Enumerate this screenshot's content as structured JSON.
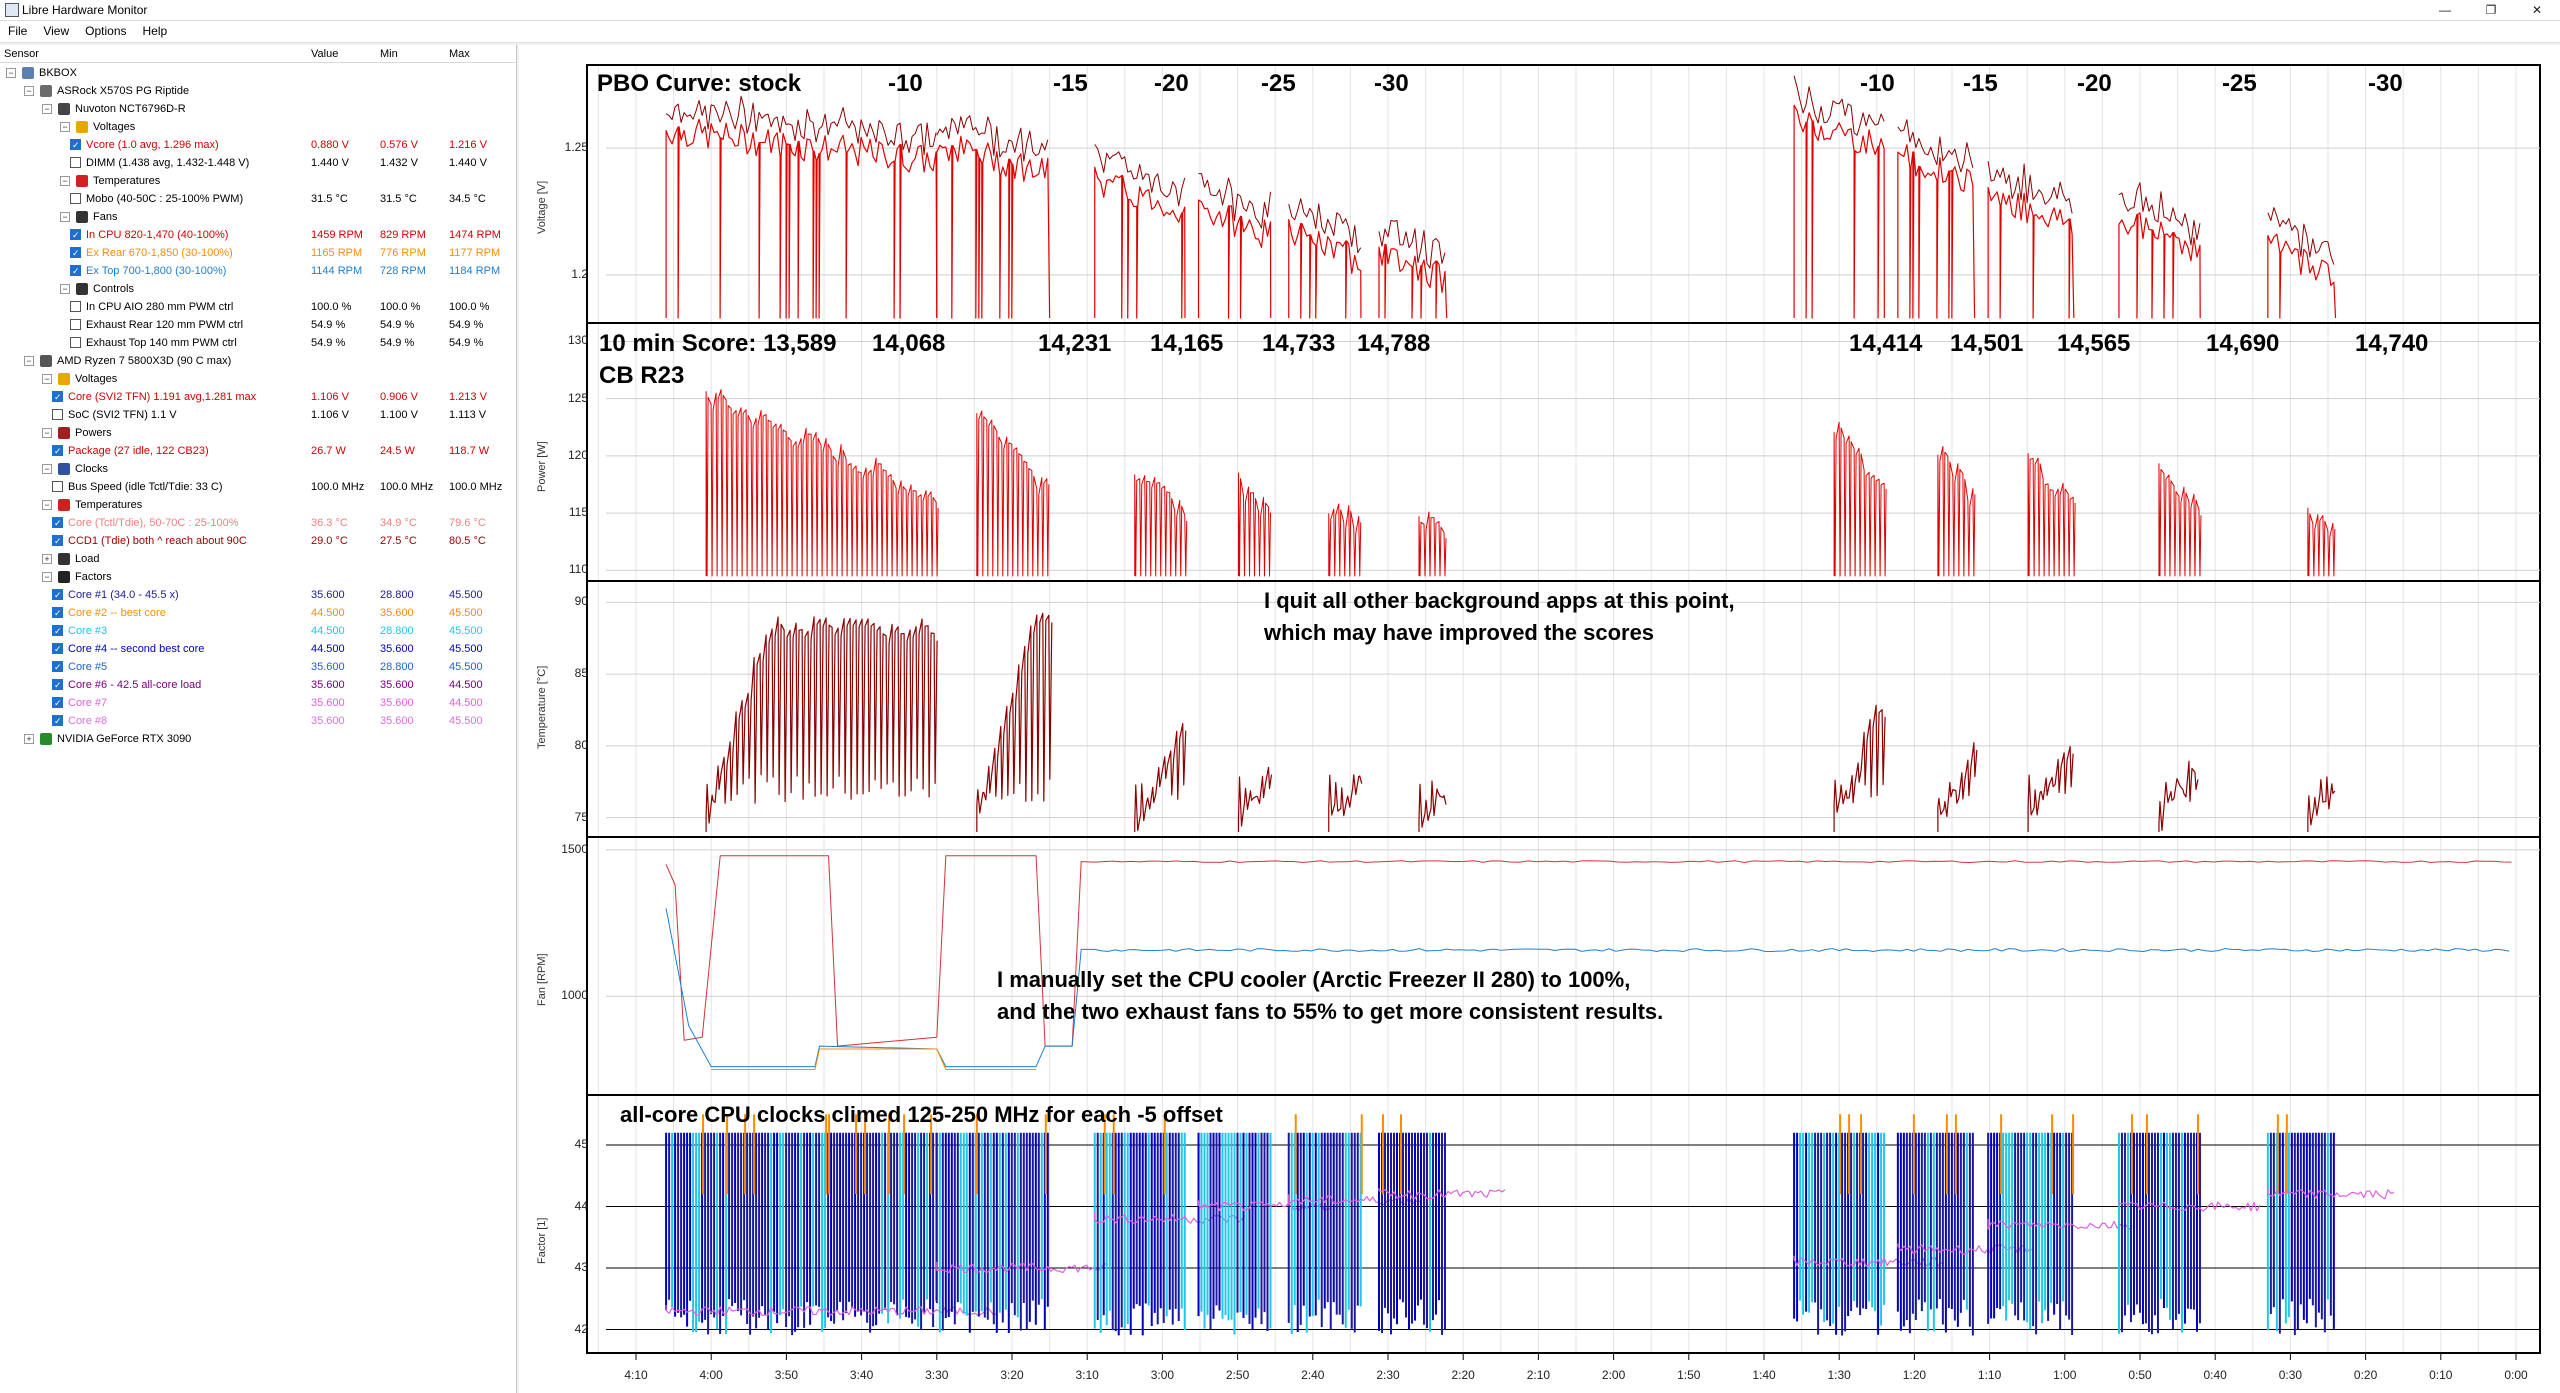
{
  "window": {
    "title": "Libre Hardware Monitor",
    "min": "—",
    "max": "❐",
    "close": "✕"
  },
  "menu": [
    "File",
    "View",
    "Options",
    "Help"
  ],
  "tree_header": {
    "sensor": "Sensor",
    "value": "Value",
    "min": "Min",
    "max": "Max"
  },
  "tree": [
    {
      "label": "BKBOX",
      "indent": 0,
      "exp": "−",
      "icon": "computer-icon",
      "iconColor": "#5a7fb0"
    },
    {
      "label": "ASRock X570S PG Riptide",
      "indent": 1,
      "exp": "−",
      "icon": "motherboard-icon",
      "iconColor": "#6b6b6b"
    },
    {
      "label": "Nuvoton NCT6796D-R",
      "indent": 2,
      "exp": "−",
      "icon": "chip-icon",
      "iconColor": "#444"
    },
    {
      "label": "Voltages",
      "indent": 3,
      "exp": "−",
      "icon": "lightning-icon",
      "iconColor": "#e6a800"
    },
    {
      "label": "Vcore (1.0 avg, 1.296 max)",
      "indent": 4,
      "chk": true,
      "value": "0.880 V",
      "min": "0.576 V",
      "max": "1.216 V",
      "color": "#d40000"
    },
    {
      "label": "DIMM (1.438 avg, 1.432-1.448 V)",
      "indent": 4,
      "chk": false,
      "value": "1.440 V",
      "min": "1.432 V",
      "max": "1.440 V",
      "color": "#000"
    },
    {
      "label": "Temperatures",
      "indent": 3,
      "exp": "−",
      "icon": "thermometer-icon",
      "iconColor": "#d02020"
    },
    {
      "label": "Mobo (40-50C : 25-100% PWM)",
      "indent": 4,
      "chk": false,
      "value": "31.5 °C",
      "min": "31.5 °C",
      "max": "34.5 °C",
      "color": "#000"
    },
    {
      "label": "Fans",
      "indent": 3,
      "exp": "−",
      "icon": "fan-icon",
      "iconColor": "#333"
    },
    {
      "label": "In CPU 820-1,470 (40-100%)",
      "indent": 4,
      "chk": true,
      "value": "1459 RPM",
      "min": "829 RPM",
      "max": "1474 RPM",
      "color": "#d40000"
    },
    {
      "label": "Ex Rear 670-1,850 (30-100%)",
      "indent": 4,
      "chk": true,
      "value": "1165 RPM",
      "min": "776 RPM",
      "max": "1177 RPM",
      "color": "#ff8c00"
    },
    {
      "label": "Ex Top 700-1,800 (30-100%)",
      "indent": 4,
      "chk": true,
      "value": "1144 RPM",
      "min": "728 RPM",
      "max": "1184 RPM",
      "color": "#1e7fd0"
    },
    {
      "label": "Controls",
      "indent": 3,
      "exp": "−",
      "icon": "gauge-icon",
      "iconColor": "#333"
    },
    {
      "label": "In CPU AIO 280 mm PWM ctrl",
      "indent": 4,
      "chk": false,
      "value": "100.0 %",
      "min": "100.0 %",
      "max": "100.0 %",
      "color": "#000"
    },
    {
      "label": "Exhaust Rear 120 mm PWM ctrl",
      "indent": 4,
      "chk": false,
      "value": "54.9 %",
      "min": "54.9 %",
      "max": "54.9 %",
      "color": "#000"
    },
    {
      "label": "Exhaust Top 140 mm PWM ctrl",
      "indent": 4,
      "chk": false,
      "value": "54.9 %",
      "min": "54.9 %",
      "max": "54.9 %",
      "color": "#000"
    },
    {
      "label": "AMD Ryzen 7 5800X3D (90 C max)",
      "indent": 1,
      "exp": "−",
      "icon": "cpu-icon",
      "iconColor": "#555"
    },
    {
      "label": "Voltages",
      "indent": 2,
      "exp": "−",
      "icon": "lightning-icon",
      "iconColor": "#e6a800"
    },
    {
      "label": "Core (SVI2 TFN) 1.191 avg,1.281 max",
      "indent": 3,
      "chk": true,
      "value": "1.106 V",
      "min": "0.906 V",
      "max": "1.213 V",
      "color": "#d40000"
    },
    {
      "label": "SoC (SVI2 TFN) 1.1 V",
      "indent": 3,
      "chk": false,
      "value": "1.106 V",
      "min": "1.100 V",
      "max": "1.113 V",
      "color": "#000"
    },
    {
      "label": "Powers",
      "indent": 2,
      "exp": "−",
      "icon": "power-icon",
      "iconColor": "#a02020"
    },
    {
      "label": "Package (27 idle, 122 CB23)",
      "indent": 3,
      "chk": true,
      "value": "26.7 W",
      "min": "24.5 W",
      "max": "118.7 W",
      "color": "#d40000"
    },
    {
      "label": "Clocks",
      "indent": 2,
      "exp": "−",
      "icon": "clock-icon",
      "iconColor": "#3050a0"
    },
    {
      "label": "Bus Speed (idle Tctl/Tdie: 33 C)",
      "indent": 3,
      "chk": false,
      "value": "100.0 MHz",
      "min": "100.0 MHz",
      "max": "100.0 MHz",
      "color": "#000"
    },
    {
      "label": "Temperatures",
      "indent": 2,
      "exp": "−",
      "icon": "thermometer-icon",
      "iconColor": "#d02020"
    },
    {
      "label": "Core (Tctl/Tdie), 50-70C : 25-100%",
      "indent": 3,
      "chk": true,
      "value": "36.3 °C",
      "min": "34.9 °C",
      "max": "79.6 °C",
      "color": "#f08080"
    },
    {
      "label": "CCD1 (Tdie) both ^ reach about 90C",
      "indent": 3,
      "chk": true,
      "value": "29.0 °C",
      "min": "27.5 °C",
      "max": "80.5 °C",
      "color": "#a00000"
    },
    {
      "label": "Load",
      "indent": 2,
      "exp": "+",
      "icon": "load-icon",
      "iconColor": "#333"
    },
    {
      "label": "Factors",
      "indent": 2,
      "exp": "−",
      "icon": "alpha-icon",
      "iconColor": "#222"
    },
    {
      "label": "Core #1 (34.0 - 45.5 x)",
      "indent": 3,
      "chk": true,
      "value": "35.600",
      "min": "28.800",
      "max": "45.500",
      "color": "#1a1aa0"
    },
    {
      "label": "Core #2 -- best core",
      "indent": 3,
      "chk": true,
      "value": "44.500",
      "min": "35.600",
      "max": "45.500",
      "color": "#ff8c00"
    },
    {
      "label": "Core #3",
      "indent": 3,
      "chk": true,
      "value": "44.500",
      "min": "28.800",
      "max": "45.500",
      "color": "#20c8e8"
    },
    {
      "label": "Core #4 -- second best core",
      "indent": 3,
      "chk": true,
      "value": "44.500",
      "min": "35.600",
      "max": "45.500",
      "color": "#0000c0"
    },
    {
      "label": "Core #5",
      "indent": 3,
      "chk": true,
      "value": "35.600",
      "min": "28.800",
      "max": "45.500",
      "color": "#2060d0"
    },
    {
      "label": "Core #6 - 42.5 all-core load",
      "indent": 3,
      "chk": true,
      "value": "35.600",
      "min": "35.600",
      "max": "44.500",
      "color": "#7a0080"
    },
    {
      "label": "Core #7",
      "indent": 3,
      "chk": true,
      "value": "35.600",
      "min": "35.600",
      "max": "44.500",
      "color": "#e060e0"
    },
    {
      "label": "Core #8",
      "indent": 3,
      "chk": true,
      "value": "35.600",
      "min": "35.600",
      "max": "45.500",
      "color": "#e070e0"
    },
    {
      "label": "NVIDIA GeForce RTX 3090",
      "indent": 1,
      "exp": "+",
      "icon": "gpu-icon",
      "iconColor": "#2a8a2a"
    }
  ],
  "panels": [
    {
      "key": "voltage",
      "ylabel": "Voltage [V]",
      "ticks": [
        {
          "label": "1.25",
          "v": 1.25
        },
        {
          "label": "1.2",
          "v": 1.2
        }
      ],
      "ymin": 1.183,
      "ymax": 1.28
    },
    {
      "key": "power",
      "ylabel": "Power [W]",
      "ticks": [
        {
          "label": "130",
          "v": 130
        },
        {
          "label": "125",
          "v": 125
        },
        {
          "label": "120",
          "v": 120
        },
        {
          "label": "115",
          "v": 115
        },
        {
          "label": "110",
          "v": 110
        }
      ],
      "ymin": 109.5,
      "ymax": 131
    },
    {
      "key": "temp",
      "ylabel": "Temperature [°C]",
      "ticks": [
        {
          "label": "90",
          "v": 90
        },
        {
          "label": "85",
          "v": 85
        },
        {
          "label": "80",
          "v": 80
        },
        {
          "label": "75",
          "v": 75
        }
      ],
      "ymin": 74,
      "ymax": 91
    },
    {
      "key": "fan",
      "ylabel": "Fan [RPM]",
      "ticks": [
        {
          "label": "1500",
          "v": 1500
        },
        {
          "label": "1000",
          "v": 1000
        }
      ],
      "ymin": 680,
      "ymax": 1520
    },
    {
      "key": "factor",
      "ylabel": "Factor [1]",
      "ticks": [
        {
          "label": "45",
          "v": 45
        },
        {
          "label": "44",
          "v": 44
        },
        {
          "label": "43",
          "v": 43
        },
        {
          "label": "42",
          "v": 42
        }
      ],
      "ymin": 41.7,
      "ymax": 45.7
    }
  ],
  "x_ticks": [
    "4:10",
    "4:00",
    "3:50",
    "3:40",
    "3:30",
    "3:20",
    "3:10",
    "3:00",
    "2:50",
    "2:40",
    "2:30",
    "2:20",
    "2:10",
    "2:00",
    "1:50",
    "1:40",
    "1:30",
    "1:20",
    "1:10",
    "1:00",
    "0:50",
    "0:40",
    "0:30",
    "0:20",
    "0:10",
    "0:00"
  ],
  "annotations": {
    "pbo": "PBO Curve: stock",
    "offsets": [
      "-10",
      "-15",
      "-20",
      "-25",
      "-30",
      "-10",
      "-15",
      "-20",
      "-25",
      "-30"
    ],
    "score_label": "10 min Score: 13,589",
    "scores": [
      "14,068",
      "14,231",
      "14,165",
      "14,733",
      "14,788",
      "14,414",
      "14,501",
      "14,565",
      "14,690",
      "14,740"
    ],
    "cb": "CB R23",
    "quit_1": "I quit all other background apps at this point,",
    "quit_2": "which may have improved the scores",
    "fan_1": "I manually set the CPU cooler (Arctic Freezer II 280) to 100%,",
    "fan_2": "and the two exhaust fans to 55% to get more consistent results.",
    "clocks": "all-core CPU clocks climed 125-250 MHz for each -5 offset"
  },
  "colors": {
    "vcore": "#e00000",
    "vcore_dark": "#8b0000",
    "power": "#e00000",
    "temp": "#8b0000",
    "fan_cpu": "#d8303a",
    "fan_top": "#1e7fd0",
    "fan_rear": "#ff8c00",
    "core1": "#1a1aa0",
    "core2": "#ff8c00",
    "core3": "#20c8e8",
    "core4": "#0000c0",
    "core7": "#e060e0"
  },
  "chart_data": [
    {
      "type": "line",
      "ylabel": "Voltage [V]",
      "ylim": [
        1.18,
        1.28
      ],
      "segments_x_minutes_remaining": [
        [
          4.1,
          3.5
        ],
        [
          3.5,
          3.25
        ],
        [
          3.15,
          2.95
        ],
        [
          2.92,
          2.76
        ],
        [
          2.72,
          2.56
        ],
        [
          2.52,
          2.37
        ],
        [
          1.6,
          1.4
        ],
        [
          1.37,
          1.2
        ],
        [
          1.17,
          0.98
        ],
        [
          0.88,
          0.7
        ],
        [
          0.55,
          0.4
        ]
      ],
      "series": [
        {
          "name": "Vcore",
          "typical_load_values": [
            1.245,
            1.24,
            1.225,
            1.215,
            1.205,
            1.198,
            1.25,
            1.235,
            1.22,
            1.21,
            1.2
          ]
        }
      ]
    },
    {
      "type": "line",
      "ylabel": "Power [W]",
      "ylim": [
        110,
        130
      ],
      "series": [
        {
          "name": "Package",
          "peak_values": [
            127,
            128,
            122,
            121,
            118,
            116,
            128,
            126,
            124,
            123,
            117
          ]
        }
      ]
    },
    {
      "type": "line",
      "ylabel": "Temperature [°C]",
      "ylim": [
        75,
        90
      ],
      "series": [
        {
          "name": "CCD1",
          "peak_values": [
            89,
            90,
            83.5,
            82,
            81,
            80,
            86,
            83.5,
            82.5,
            82,
            79.5
          ]
        }
      ]
    },
    {
      "type": "line",
      "ylabel": "Fan [RPM]",
      "ylim": [
        700,
        1500
      ],
      "series": [
        {
          "name": "In CPU",
          "value_after_set": 1460
        },
        {
          "name": "Ex Top",
          "value_after_set": 1155
        },
        {
          "name": "Ex Rear",
          "value_after_set": 1160
        }
      ]
    },
    {
      "type": "line",
      "ylabel": "Factor [1]",
      "ylim": [
        42,
        45.5
      ],
      "series": [
        {
          "name": "Core #6 all-core",
          "step_values": [
            42.3,
            43.0,
            43.8,
            44.0,
            44.1,
            44.2,
            43.1,
            43.3,
            43.7,
            44.0,
            44.2
          ]
        }
      ]
    }
  ]
}
